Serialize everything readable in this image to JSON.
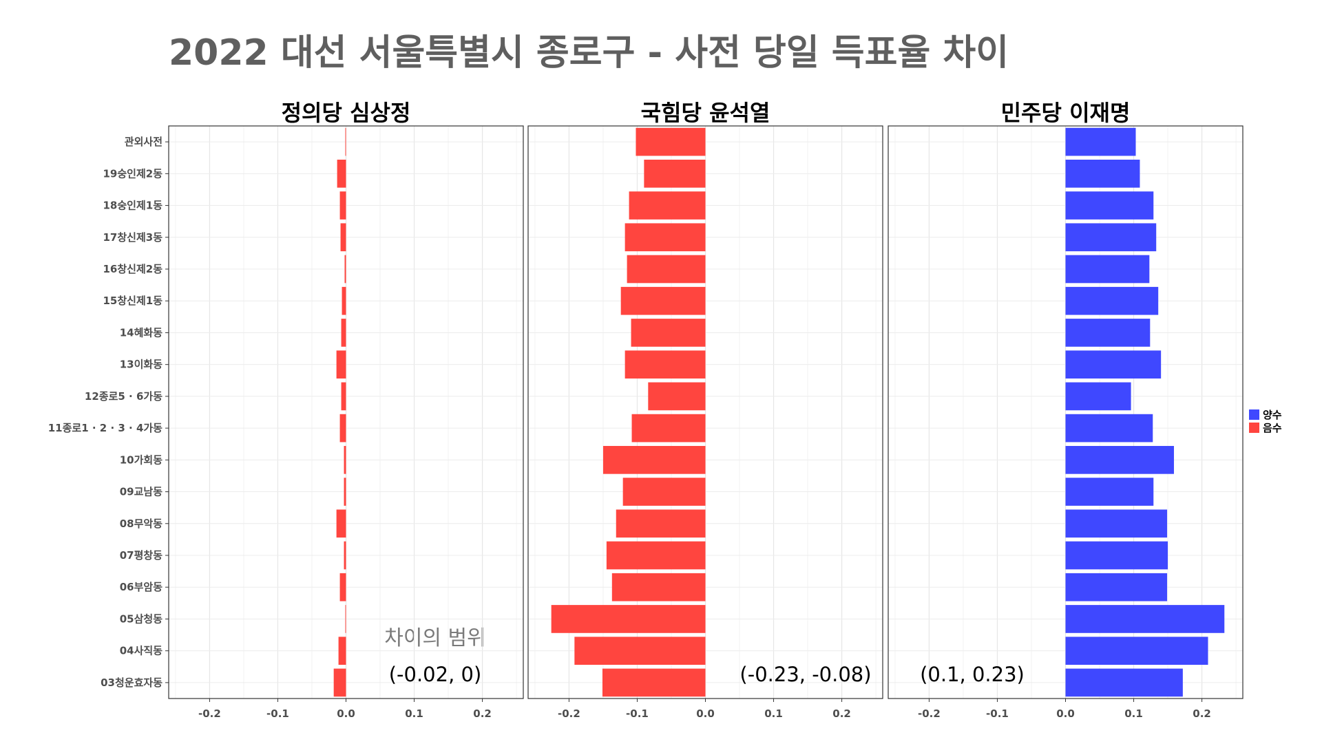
{
  "chart_data": {
    "type": "bar",
    "orientation": "horizontal",
    "title": "2022 대선 서울특별시 종로구 - 사전 당일 득표율 차이",
    "categories": [
      "관외사전",
      "19숭인제2동",
      "18숭인제1동",
      "17창신제3동",
      "16창신제2동",
      "15창신제1동",
      "14혜화동",
      "13이화동",
      "12종로5 · 6가동",
      "11종로1 · 2 · 3 · 4가동",
      "10가회동",
      "09교남동",
      "08무악동",
      "07평창동",
      "06부암동",
      "05삼청동",
      "04사직동",
      "03청운효자동"
    ],
    "xlim": [
      -0.26,
      0.26
    ],
    "x_ticks": [
      "-0.2",
      "-0.1",
      "0.0",
      "0.1",
      "0.2"
    ],
    "x_tick_values": [
      -0.2,
      -0.1,
      0,
      0.1,
      0.2
    ],
    "grid": true,
    "legend": {
      "placement": "right",
      "entries": [
        {
          "label": "양수",
          "color": "#3f48ff"
        },
        {
          "label": "음수",
          "color": "#ff453f"
        }
      ]
    },
    "annotation_title": "차이의 범위",
    "panels": [
      {
        "name": "정의당 심상정",
        "range_label": "(-0.02, 0)",
        "values": [
          -0.001,
          -0.013,
          -0.009,
          -0.008,
          -0.002,
          -0.006,
          -0.007,
          -0.014,
          -0.007,
          -0.009,
          -0.003,
          -0.003,
          -0.014,
          -0.003,
          -0.009,
          -0.001,
          -0.011,
          -0.018
        ]
      },
      {
        "name": "국힘당 윤석열",
        "range_label": "(-0.23, -0.08)",
        "values": [
          -0.102,
          -0.09,
          -0.112,
          -0.118,
          -0.115,
          -0.124,
          -0.109,
          -0.118,
          -0.084,
          -0.108,
          -0.15,
          -0.121,
          -0.131,
          -0.145,
          -0.137,
          -0.226,
          -0.192,
          -0.151
        ]
      },
      {
        "name": "민주당 이재명",
        "range_label": "(0.1, 0.23)",
        "values": [
          0.103,
          0.109,
          0.129,
          0.133,
          0.123,
          0.136,
          0.124,
          0.14,
          0.096,
          0.128,
          0.159,
          0.129,
          0.149,
          0.15,
          0.149,
          0.233,
          0.209,
          0.172
        ]
      }
    ]
  }
}
